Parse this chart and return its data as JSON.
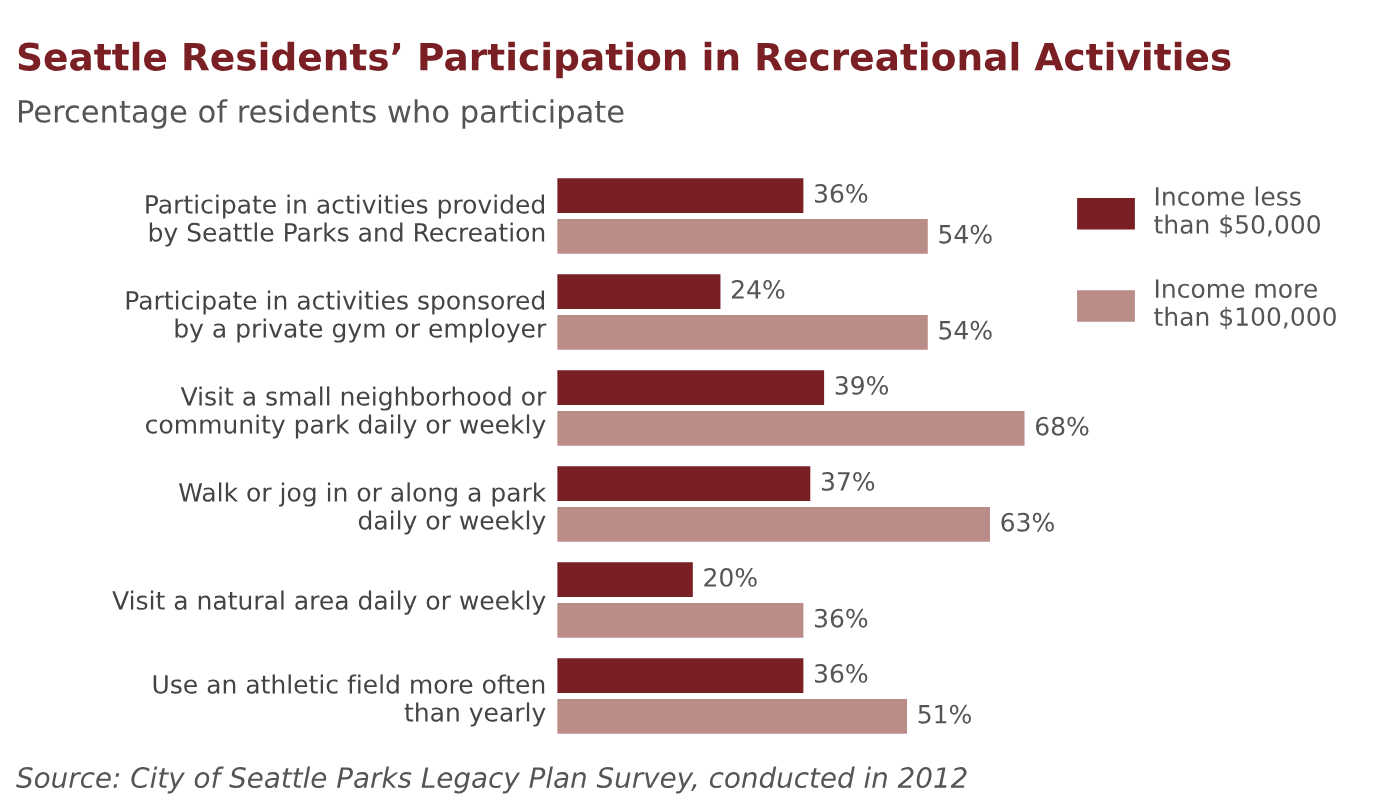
{
  "chart_data": {
    "type": "bar",
    "orientation": "horizontal",
    "title": "Seattle Residents’ Participation in Recreational Activities",
    "subtitle": "Percentage of residents who participate",
    "categories": [
      "Participate in activities provided\nby Seattle Parks and Recreation",
      "Participate in activities sponsored\nby a private gym or employer",
      "Visit a small neighborhood or\ncommunity park daily or weekly",
      "Walk or jog in or along a park\ndaily or weekly",
      "Visit a natural area daily or weekly",
      "Use an athletic field more often\nthan yearly"
    ],
    "series": [
      {
        "name": "Income less\nthan $50,000",
        "color": "#7a1f24",
        "values": [
          36,
          24,
          39,
          37,
          20,
          36
        ],
        "value_labels": [
          "36%",
          "24%",
          "39%",
          "37%",
          "20%",
          "36%"
        ]
      },
      {
        "name": "Income more\nthan $100,000",
        "color": "#b98c88",
        "values": [
          54,
          54,
          68,
          63,
          36,
          51
        ],
        "value_labels": [
          "54%",
          "54%",
          "68%",
          "63%",
          "36%",
          "51%"
        ]
      }
    ],
    "legend": "top right",
    "grid": false,
    "tick_labels": "y",
    "annotations": [
      "Source: City of Seattle Parks Legacy Plan Survey, conducted in 2012"
    ]
  }
}
